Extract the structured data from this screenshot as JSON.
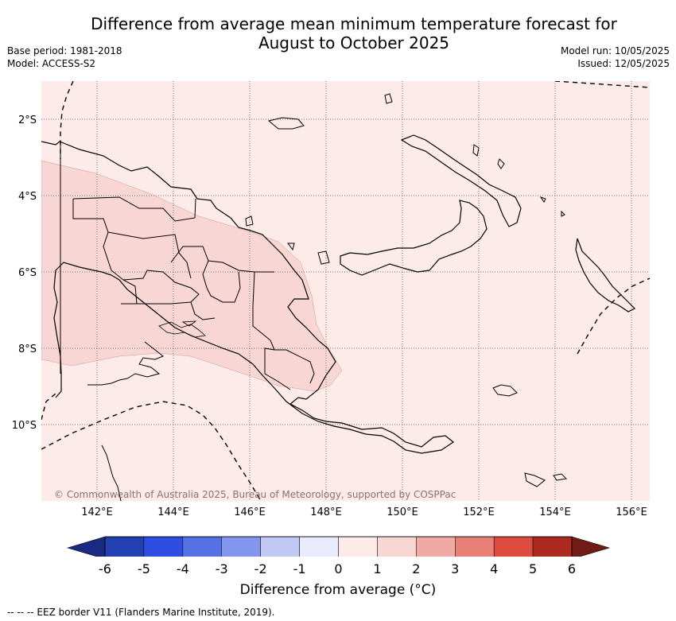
{
  "header": {
    "title_line1": "Difference from average mean minimum temperature forecast for",
    "title_line2": "August to October 2025",
    "base_period": "Base period: 1981-2018",
    "model": "Model: ACCESS-S2",
    "model_run": "Model run: 10/05/2025",
    "issued": "Issued: 12/05/2025"
  },
  "map": {
    "region": "Papua New Guinea",
    "lat_labels": [
      "2°S",
      "4°S",
      "6°S",
      "8°S",
      "10°S"
    ],
    "lon_labels": [
      "142°E",
      "144°E",
      "146°E",
      "148°E",
      "150°E",
      "152°E",
      "154°E",
      "156°E"
    ],
    "background_anomaly": "0 to 1",
    "highlight_anomaly": "1 to 2",
    "credit": "© Commonwealth of Australia 2025, Bureau of Meteorology, supported by COSPPac"
  },
  "colorbar": {
    "tick_labels": [
      "-6",
      "-5",
      "-4",
      "-3",
      "-2",
      "-1",
      "0",
      "1",
      "2",
      "3",
      "4",
      "5",
      "6"
    ],
    "colors": [
      "#2240b0",
      "#2d4ee0",
      "#5670e6",
      "#8396ee",
      "#c3c9f5",
      "#e8ebfb",
      "#fcebe8",
      "#f7d6d3",
      "#f0aaa4",
      "#e88078",
      "#dc4b3e",
      "#ac2920"
    ],
    "under_color": "#1a2a80",
    "over_color": "#701b16",
    "title": "Difference from average (°C)"
  },
  "footer": {
    "eez_note": "--  --  -- EEZ border V11 (Flanders Marine Institute, 2019)."
  }
}
